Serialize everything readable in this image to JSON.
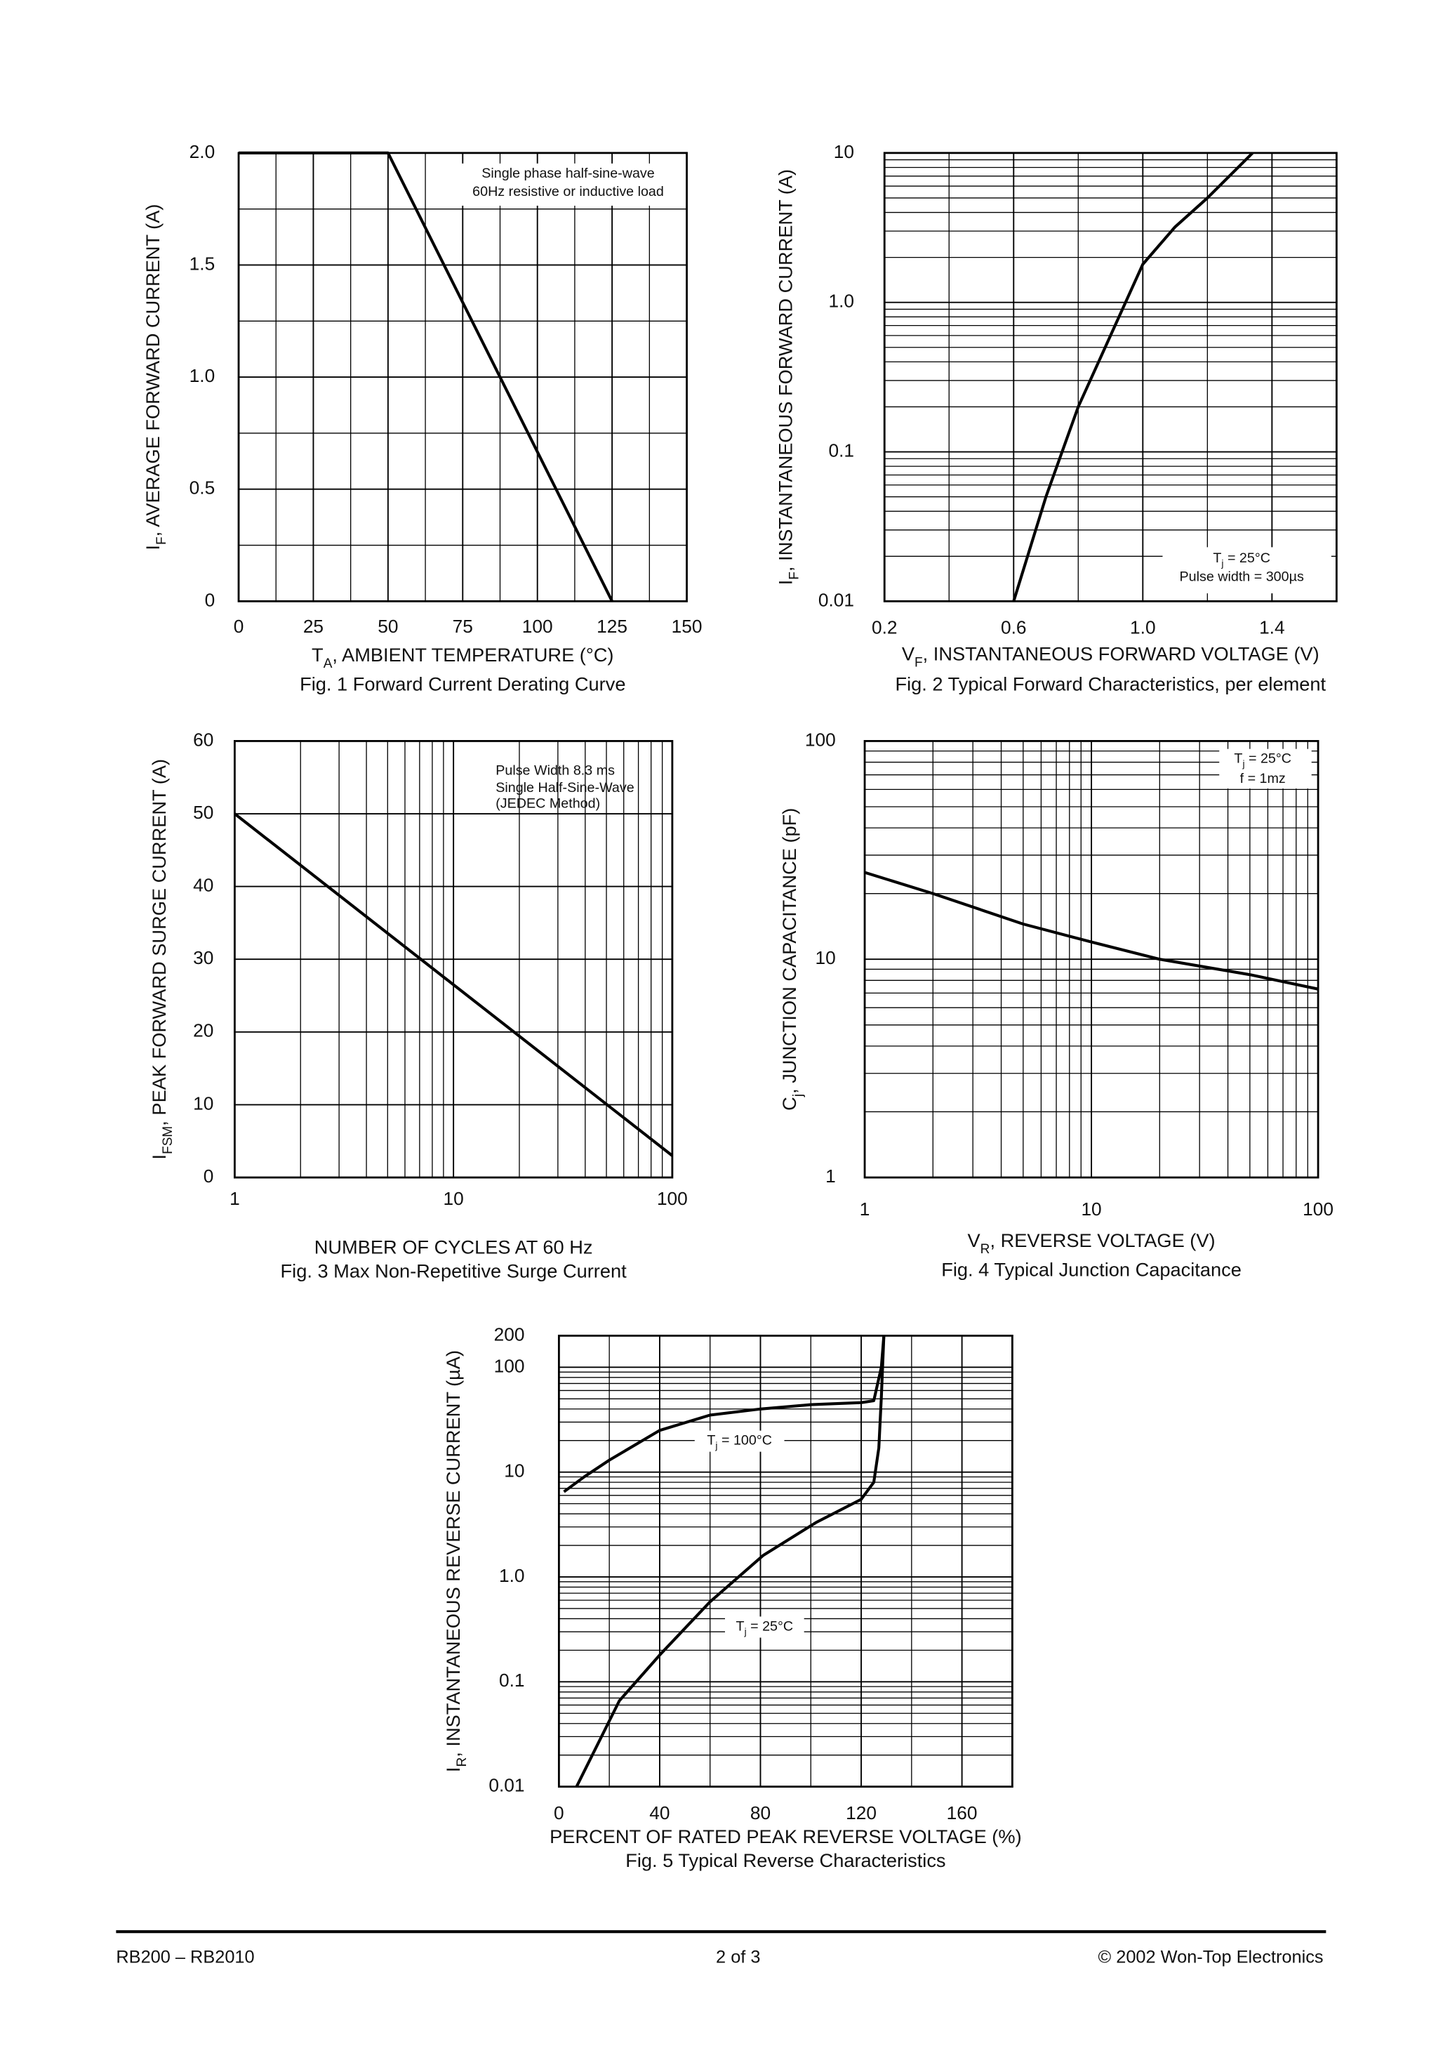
{
  "chart_data": [
    {
      "type": "line",
      "title": "Fig. 1  Forward Current Derating Curve",
      "xlabel": [
        "T",
        "A",
        ", AMBIENT TEMPERATURE (°C)"
      ],
      "ylabel": [
        "I",
        "F",
        ", AVERAGE FORWARD CURRENT (A)"
      ],
      "xlim": [
        0,
        150
      ],
      "xticks": [
        0,
        25,
        50,
        75,
        100,
        125,
        150
      ],
      "ylim": [
        0,
        2
      ],
      "yticks": [
        0,
        0.5,
        {
          "value": 1,
          "label": "1.0"
        },
        1.5,
        {
          "value": 2,
          "label": "2.0"
        }
      ],
      "grid": true,
      "minor_grid": [
        "x",
        "y"
      ],
      "annotations": [
        [
          "Single phase half-sine-wave"
        ],
        [
          "60Hz resistive or inductive load"
        ]
      ],
      "series": [
        {
          "color": "#000000",
          "x": [
            0,
            50,
            125
          ],
          "values": [
            2,
            2,
            0
          ]
        }
      ]
    },
    {
      "type": "line",
      "title": "Fig. 2  Typical Forward Characteristics, per element",
      "xlabel": [
        "V",
        "F",
        ", INSTANTANEOUS FORWARD VOLTAGE (V)"
      ],
      "ylabel": [
        "I",
        "F",
        ", INSTANTANEOUS FORWARD CURRENT (A)"
      ],
      "xlim": [
        0.2,
        1.6
      ],
      "xticks": [
        0.2,
        0.6,
        {
          "value": 1,
          "label": "1.0"
        },
        1.4
      ],
      "ylim": [
        0.01,
        10
      ],
      "yticks": [
        0.01,
        0.1,
        {
          "value": 1,
          "label": "1.0"
        },
        10
      ],
      "yscale": "log",
      "grid": true,
      "minor_grid": [
        "x",
        "y"
      ],
      "annotations": [
        [
          "T",
          "j",
          " = 25°C"
        ],
        [
          "Pulse width = 300µs"
        ]
      ],
      "series": [
        {
          "color": "#000000",
          "x": [
            0.6,
            0.7,
            0.8,
            0.9,
            1.0,
            1.1,
            1.2,
            1.34
          ],
          "values": [
            0.01,
            0.05,
            0.2,
            0.6,
            1.8,
            3.2,
            5,
            10
          ]
        }
      ]
    },
    {
      "type": "line",
      "title": "Fig. 3  Max Non-Repetitive Surge Current",
      "xlabel": [
        "NUMBER OF CYCLES AT 60 Hz"
      ],
      "ylabel": [
        "I",
        "FSM",
        ", PEAK FORWARD SURGE CURRENT (A)"
      ],
      "xlim": [
        1,
        100
      ],
      "xticks": [
        1,
        10,
        100
      ],
      "xscale": "log",
      "ylim": [
        0,
        60
      ],
      "yticks": [
        0,
        10,
        20,
        30,
        40,
        50,
        60
      ],
      "grid": true,
      "minor_grid": [
        "x"
      ],
      "annotations": [
        [
          "Pulse Width 8.3 ms"
        ],
        [
          "Single Half-Sine-Wave"
        ],
        [
          "(JEDEC Method)"
        ]
      ],
      "series": [
        {
          "color": "#000000",
          "x": [
            1,
            100
          ],
          "values": [
            50,
            3
          ]
        }
      ]
    },
    {
      "type": "line",
      "title": "Fig. 4  Typical Junction Capacitance",
      "xlabel": [
        "V",
        "R",
        ", REVERSE VOLTAGE (V)"
      ],
      "ylabel": [
        "C",
        "j",
        ", JUNCTION CAPACITANCE (pF)"
      ],
      "xlim": [
        1,
        100
      ],
      "xticks": [
        1,
        10,
        100
      ],
      "xscale": "log",
      "ylim": [
        1,
        100
      ],
      "yticks": [
        1,
        10,
        100
      ],
      "yscale": "log",
      "grid": true,
      "minor_grid": [
        "x",
        "y"
      ],
      "annotations": [
        [
          "T",
          "j",
          " = 25°C"
        ],
        [
          "f = 1mz"
        ]
      ],
      "series": [
        {
          "color": "#000000",
          "x": [
            1,
            2,
            5,
            10,
            20,
            50,
            100
          ],
          "values": [
            25,
            20,
            14.5,
            12,
            10,
            8.5,
            7.3
          ]
        }
      ]
    },
    {
      "type": "line",
      "title": "Fig. 5  Typical Reverse Characteristics",
      "xlabel": [
        "PERCENT OF RATED PEAK REVERSE VOLTAGE (%)"
      ],
      "ylabel": [
        "I",
        "R",
        ", INSTANTANEOUS REVERSE CURRENT (µA)"
      ],
      "xlim": [
        0,
        180
      ],
      "xticks": [
        0,
        40,
        80,
        120,
        160
      ],
      "ylim": [
        0.01,
        200
      ],
      "yticks": [
        0.01,
        0.1,
        {
          "value": 1,
          "label": "1.0"
        },
        10,
        100,
        200
      ],
      "yscale": "log",
      "grid": true,
      "minor_grid": [
        "x",
        "y"
      ],
      "annotations": [
        [
          "T",
          "j",
          " = 100°C"
        ],
        [
          "T",
          "j",
          " = 25°C"
        ]
      ],
      "series": [
        {
          "color": "#000000",
          "x": [
            2,
            10,
            20,
            40,
            60,
            80,
            100,
            120,
            125,
            128,
            129
          ],
          "values": [
            6.5,
            9,
            13,
            25,
            35,
            40,
            44,
            46,
            48,
            100,
            200
          ]
        },
        {
          "color": "#000000",
          "x": [
            7,
            24,
            40,
            60,
            81,
            102,
            120,
            125,
            127,
            128,
            129
          ],
          "values": [
            0.01,
            0.066,
            0.18,
            0.58,
            1.6,
            3.3,
            5.5,
            8,
            17,
            52,
            200
          ]
        }
      ]
    }
  ],
  "footer": {
    "left": "RB200 – RB2010",
    "center": "2 of 3",
    "right": "© 2002 Won-Top Electronics"
  }
}
